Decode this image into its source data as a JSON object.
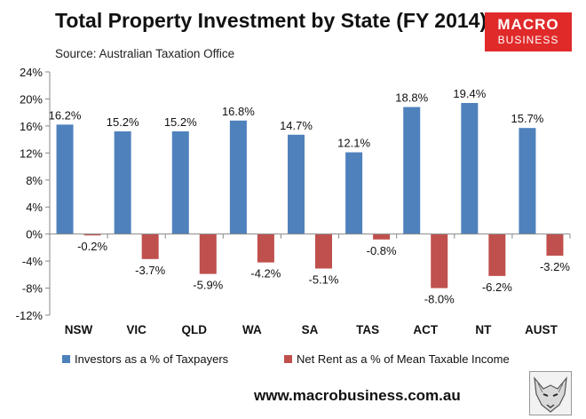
{
  "header": {
    "title": "Total Property Investment by State (FY 2014)",
    "subtitle": "Source: Australian Taxation Office",
    "logo_top": "MACRO",
    "logo_bottom": "BUSINESS"
  },
  "footer": {
    "website": "www.macrobusiness.com.au",
    "icon": "fox-icon"
  },
  "colors": {
    "investors": "#4f81bd",
    "net_rent": "#c0504d"
  },
  "chart_data": {
    "type": "bar",
    "categories": [
      "NSW",
      "VIC",
      "QLD",
      "WA",
      "SA",
      "TAS",
      "ACT",
      "NT",
      "AUST"
    ],
    "series": [
      {
        "name": "Investors as a % of Taxpayers",
        "values": [
          16.2,
          15.2,
          15.2,
          16.8,
          14.7,
          12.1,
          18.8,
          19.4,
          15.7
        ],
        "labels": [
          "16.2%",
          "15.2%",
          "15.2%",
          "16.8%",
          "14.7%",
          "12.1%",
          "18.8%",
          "19.4%",
          "15.7%"
        ],
        "color": "#4f81bd"
      },
      {
        "name": "Net Rent as a % of Mean Taxable Income",
        "values": [
          -0.2,
          -3.7,
          -5.9,
          -4.2,
          -5.1,
          -0.8,
          -8.0,
          -6.2,
          -3.2
        ],
        "labels": [
          "-0.2%",
          "-3.7%",
          "-5.9%",
          "-4.2%",
          "-5.1%",
          "-0.8%",
          "-8.0%",
          "-6.2%",
          "-3.2%"
        ],
        "color": "#c0504d"
      }
    ],
    "y_ticks": [
      24,
      20,
      16,
      12,
      8,
      4,
      0,
      -4,
      -8,
      -12
    ],
    "y_tick_labels": [
      "24%",
      "20%",
      "16%",
      "12%",
      "8%",
      "4%",
      "0%",
      "-4%",
      "-8%",
      "-12%"
    ],
    "ylim": [
      -12,
      24
    ],
    "grid": false,
    "legend": "bottom"
  }
}
